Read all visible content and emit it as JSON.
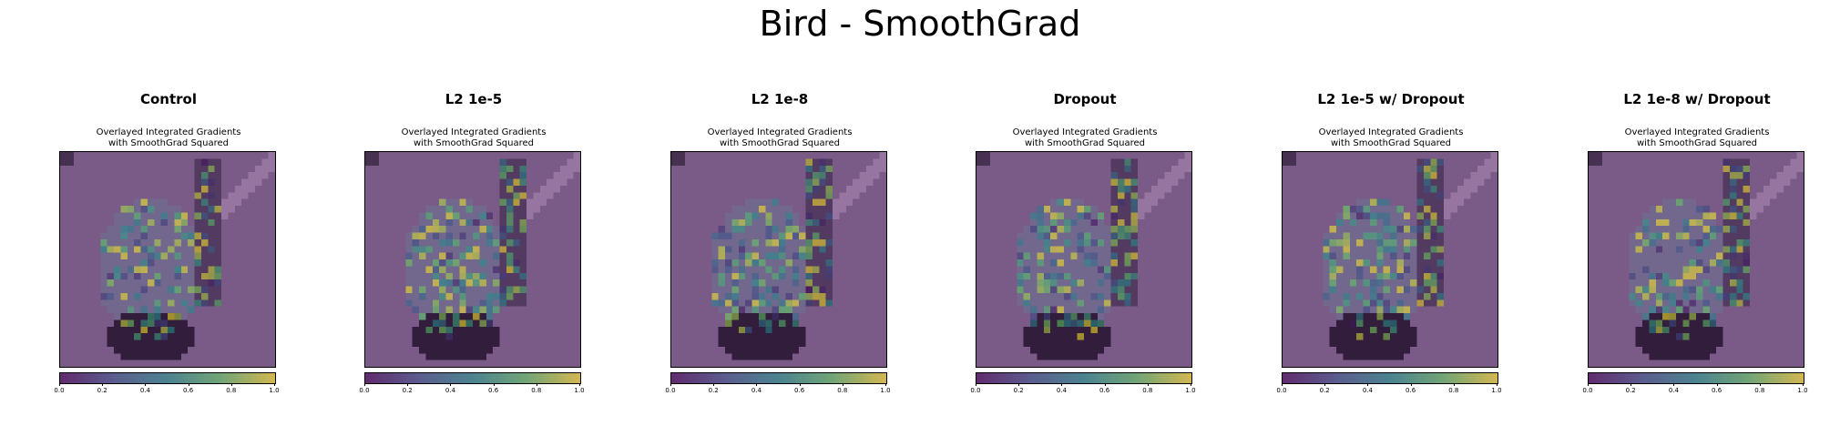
{
  "figure": {
    "title": "Bird - SmoothGrad"
  },
  "panels": [
    {
      "title": "Control",
      "subtitle_line1": "Overlayed Integrated Gradients",
      "subtitle_line2": "with SmoothGrad Squared"
    },
    {
      "title": "L2 1e-5",
      "subtitle_line1": "Overlayed Integrated Gradients",
      "subtitle_line2": "with SmoothGrad Squared"
    },
    {
      "title": "L2 1e-8",
      "subtitle_line1": "Overlayed Integrated Gradients",
      "subtitle_line2": "with SmoothGrad Squared"
    },
    {
      "title": "Dropout",
      "subtitle_line1": "Overlayed Integrated Gradients",
      "subtitle_line2": "with SmoothGrad Squared"
    },
    {
      "title": "L2 1e-5 w/ Dropout",
      "subtitle_line1": "Overlayed Integrated Gradients",
      "subtitle_line2": "with SmoothGrad Squared"
    },
    {
      "title": "L2 1e-8 w/ Dropout",
      "subtitle_line1": "Overlayed Integrated Gradients",
      "subtitle_line2": "with SmoothGrad Squared"
    }
  ],
  "colorbar": {
    "colormap": "viridis",
    "tick_labels": [
      "0.0",
      "0.2",
      "0.4",
      "0.6",
      "0.8",
      "1.0"
    ],
    "range": [
      0.0,
      1.0
    ]
  },
  "colors": {
    "background_purple": "#7a5a86",
    "dark_purple": "#4a2f55",
    "viridis_low": "#440154",
    "viridis_mid": "#21918c",
    "viridis_high": "#fde725"
  }
}
